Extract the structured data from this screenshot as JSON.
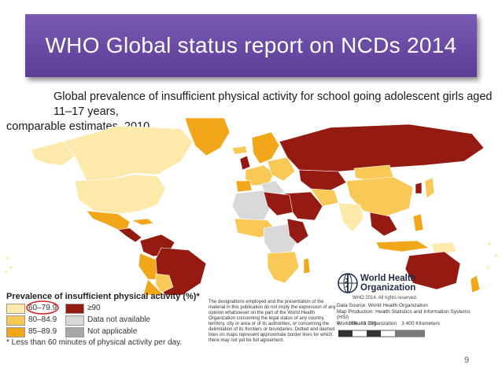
{
  "slide": {
    "title": "WHO Global status report on NCDs 2014",
    "page_number": "9"
  },
  "map": {
    "heading_line1": "Global prevalence of insufficient physical activity for school going adolescent girls aged 11–17 years,",
    "heading_line2": "comparable estimates, 2010",
    "colors": {
      "c60": "#fde9a9",
      "c80": "#f8c957",
      "c85": "#f2a619",
      "c90": "#951b12",
      "na": "#d9d9d9",
      "notapp": "#a8a8a8",
      "ocean": "#ffffff",
      "highlight_circle": "#d72222"
    }
  },
  "legend": {
    "title": "Prevalence of insufficient physical activity (%)*",
    "items": [
      {
        "label": "60–79.9",
        "color": "#fde9a9"
      },
      {
        "label": "80–84.9",
        "color": "#f8c957"
      },
      {
        "label": "85–89.9",
        "color": "#f2a619"
      },
      {
        "label": "≥90",
        "color": "#951b12"
      },
      {
        "label": "Data not available",
        "color": "#d9d9d9"
      },
      {
        "label": "Not applicable",
        "color": "#a8a8a8"
      }
    ],
    "note": "* Less than 60 minutes of physical activity per day."
  },
  "disclaimer": "The designations employed and the presentation of the material in this publication do not imply the expression of any opinion whatsoever on the part of the World Health Organization concerning the legal status of any country, territory, city or area or of its authorities, or concerning the delimitation of its frontiers or boundaries. Dotted and dashed lines on maps represent approximate border lines for which there may not yet be full agreement.",
  "who": {
    "name_line1": "World Health",
    "name_line2": "Organization",
    "copyright": "WHO 2014. All rights reserved.",
    "data_source": "Data Source: World Health Organization",
    "map_production": "Map Production: Health Statistics and Information Systems (HSI)",
    "org": "World Health Organization"
  },
  "scale": {
    "labels": [
      "0",
      "850",
      "1 700",
      "3 400 Kilometers"
    ]
  }
}
